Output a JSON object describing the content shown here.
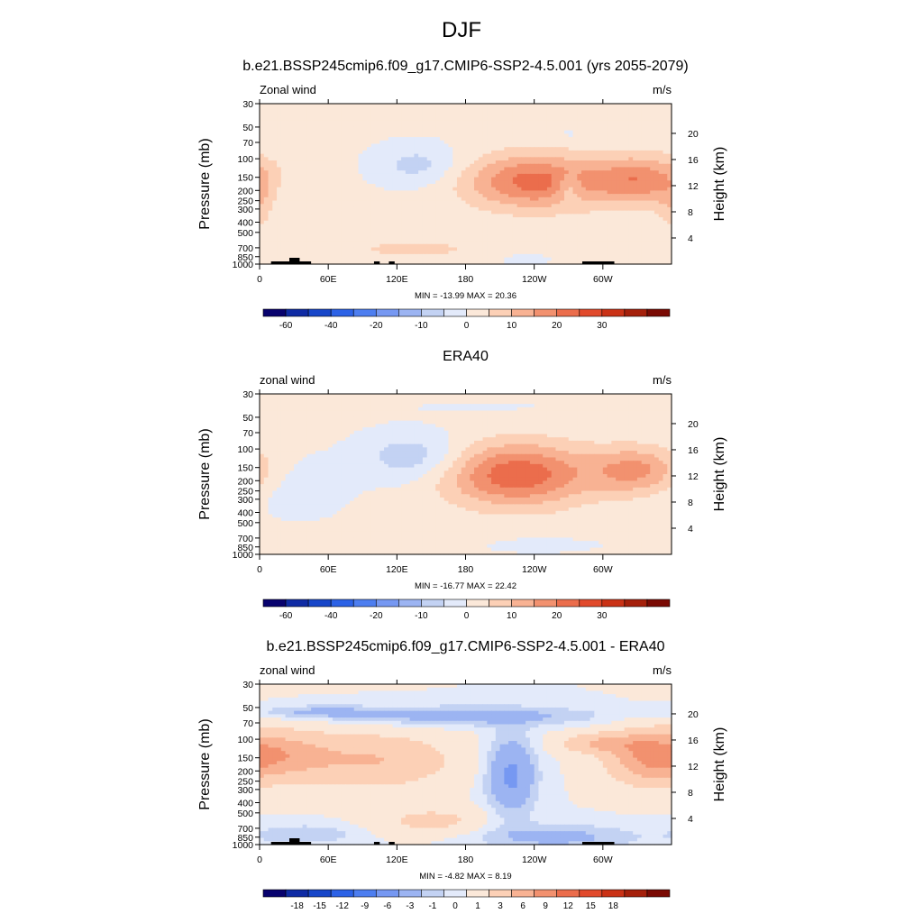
{
  "page": {
    "title": "DJF"
  },
  "palettes": {
    "wind": [
      "#08026e",
      "#0f2ba4",
      "#1746c9",
      "#2c62e6",
      "#4d7ef0",
      "#7698f2",
      "#9cb4f2",
      "#c3d2f3",
      "#e3eafa",
      "#fbe8d9",
      "#fcd0b6",
      "#f8b293",
      "#f2916f",
      "#eb6d4c",
      "#e14a2c",
      "#ca3216",
      "#a5200b",
      "#7a0a03"
    ],
    "diff": [
      "#08026e",
      "#0f2ba4",
      "#1746c9",
      "#2c62e6",
      "#4d7ef0",
      "#7698f2",
      "#9cb4f2",
      "#c3d2f3",
      "#e3eafa",
      "#fbe8d9",
      "#fcd0b6",
      "#f8b293",
      "#f2916f",
      "#eb6d4c",
      "#e14a2c",
      "#ca3216",
      "#a5200b",
      "#7a0a03"
    ]
  },
  "chart_data": [
    {
      "type": "heatmap",
      "title": "b.e21.BSSP245cmip6.f09_g17.CMIP6-SSP2-4.5.001 (yrs 2055-2079)",
      "left_label": "Zonal wind",
      "units": "m/s",
      "ylabel": "Pressure (mb)",
      "y2label": "Height (km)",
      "xticks": [
        "0",
        "60E",
        "120E",
        "180",
        "120W",
        "60W"
      ],
      "xtick_lon": [
        0,
        60,
        120,
        180,
        240,
        300
      ],
      "xlim": [
        0,
        360
      ],
      "yticks": [
        30,
        50,
        70,
        100,
        150,
        200,
        250,
        300,
        400,
        500,
        700,
        850,
        1000
      ],
      "ylim": [
        30,
        1000
      ],
      "y2ticks": [
        20,
        16,
        12,
        8,
        4
      ],
      "stats": "MIN = -13.99  MAX =  20.36",
      "colorbar_labels": [
        "-60",
        "-40",
        "-20",
        "-10",
        "0",
        "10",
        "20",
        "30"
      ],
      "palette": "wind",
      "features": [
        {
          "lon": 240,
          "p": 165,
          "amp": 21,
          "slon": 42,
          "sp": 0.42
        },
        {
          "lon": 333,
          "p": 160,
          "amp": 17,
          "slon": 30,
          "sp": 0.38
        },
        {
          "lon": 138,
          "p": 115,
          "amp": -8,
          "slon": 26,
          "sp": 0.32
        },
        {
          "lon": 28,
          "p": 190,
          "amp": -3,
          "slon": 12,
          "sp": 0.25
        },
        {
          "lon": 270,
          "p": 190,
          "amp": -8,
          "slon": 8,
          "sp": 0.22
        },
        {
          "lon": 135,
          "p": 720,
          "amp": 5,
          "slon": 55,
          "sp": 0.2
        },
        {
          "lon": 230,
          "p": 900,
          "amp": -3,
          "slon": 18,
          "sp": 0.12
        },
        {
          "lon": 0,
          "p": 300,
          "amp": 5,
          "slon": 8,
          "sp": 0.45
        },
        {
          "lon": 270,
          "p": 60,
          "amp": -2,
          "slon": 12,
          "sp": 0.12
        }
      ],
      "topo": [
        [
          10,
          45,
          3
        ],
        [
          100,
          105,
          3
        ],
        [
          113,
          118,
          3
        ],
        [
          282,
          310,
          3
        ],
        [
          26,
          35,
          7
        ]
      ]
    },
    {
      "type": "heatmap",
      "title": "ERA40",
      "left_label": "zonal wind",
      "units": "m/s",
      "ylabel": "Pressure (mb)",
      "y2label": "Height (km)",
      "xticks": [
        "0",
        "60E",
        "120E",
        "180",
        "120W",
        "60W"
      ],
      "xtick_lon": [
        0,
        60,
        120,
        180,
        240,
        300
      ],
      "xlim": [
        0,
        360
      ],
      "yticks": [
        30,
        50,
        70,
        100,
        150,
        200,
        250,
        300,
        400,
        500,
        700,
        850,
        1000
      ],
      "ylim": [
        30,
        1000
      ],
      "y2ticks": [
        20,
        16,
        12,
        8,
        4
      ],
      "stats": "MIN = -16.77  MAX =  22.42",
      "colorbar_labels": [
        "-60",
        "-40",
        "-20",
        "-10",
        "0",
        "10",
        "20",
        "30"
      ],
      "palette": "wind",
      "features": [
        {
          "lon": 225,
          "p": 175,
          "amp": 23,
          "slon": 45,
          "sp": 0.48
        },
        {
          "lon": 330,
          "p": 160,
          "amp": 15,
          "slon": 28,
          "sp": 0.36
        },
        {
          "lon": 135,
          "p": 120,
          "amp": -10,
          "slon": 32,
          "sp": 0.38
        },
        {
          "lon": 35,
          "p": 230,
          "amp": -4,
          "slon": 30,
          "sp": 0.45
        },
        {
          "lon": 240,
          "p": 820,
          "amp": -3,
          "slon": 40,
          "sp": 0.12
        },
        {
          "lon": 120,
          "p": 780,
          "amp": 4,
          "slon": 45,
          "sp": 0.14
        },
        {
          "lon": 200,
          "p": 40,
          "amp": -1.5,
          "slon": 60,
          "sp": 0.1
        }
      ],
      "topo": []
    },
    {
      "type": "heatmap",
      "title": "b.e21.BSSP245cmip6.f09_g17.CMIP6-SSP2-4.5.001 - ERA40",
      "left_label": "zonal wind",
      "units": "m/s",
      "ylabel": "Pressure (mb)",
      "y2label": "Height (km)",
      "xticks": [
        "0",
        "60E",
        "120E",
        "180",
        "120W",
        "60W"
      ],
      "xtick_lon": [
        0,
        60,
        120,
        180,
        240,
        300
      ],
      "xlim": [
        0,
        360
      ],
      "yticks": [
        30,
        50,
        70,
        100,
        150,
        200,
        250,
        300,
        400,
        500,
        700,
        850,
        1000
      ],
      "ylim": [
        30,
        1000
      ],
      "y2ticks": [
        20,
        16,
        12,
        8,
        4
      ],
      "stats": "MIN =  -4.82  MAX =   8.19",
      "colorbar_labels": [
        "-18",
        "-15",
        "-12",
        "-9",
        "-6",
        "-3",
        "-1",
        "0",
        "1",
        "3",
        "6",
        "9",
        "12",
        "15",
        "18"
      ],
      "palette": "diff",
      "features": [
        {
          "lon": 20,
          "p": 140,
          "amp": 5.5,
          "slon": 30,
          "sp": 0.35
        },
        {
          "lon": 100,
          "p": 160,
          "amp": 5,
          "slon": 45,
          "sp": 0.4
        },
        {
          "lon": 340,
          "p": 150,
          "amp": 7,
          "slon": 25,
          "sp": 0.4
        },
        {
          "lon": 300,
          "p": 110,
          "amp": 5,
          "slon": 25,
          "sp": 0.15
        },
        {
          "lon": 220,
          "p": 220,
          "amp": -4.5,
          "slon": 15,
          "sp": 0.6
        },
        {
          "lon": 180,
          "p": 60,
          "amp": -3,
          "slon": 80,
          "sp": 0.15
        },
        {
          "lon": 50,
          "p": 55,
          "amp": -2,
          "slon": 40,
          "sp": 0.1
        },
        {
          "lon": 150,
          "p": 600,
          "amp": 3,
          "slon": 30,
          "sp": 0.2
        },
        {
          "lon": 40,
          "p": 800,
          "amp": -2,
          "slon": 30,
          "sp": 0.15
        },
        {
          "lon": 260,
          "p": 850,
          "amp": -2.5,
          "slon": 50,
          "sp": 0.2
        }
      ],
      "topo": [
        [
          10,
          45,
          3
        ],
        [
          100,
          105,
          3
        ],
        [
          113,
          118,
          3
        ],
        [
          282,
          310,
          3
        ],
        [
          26,
          35,
          7
        ]
      ]
    }
  ]
}
